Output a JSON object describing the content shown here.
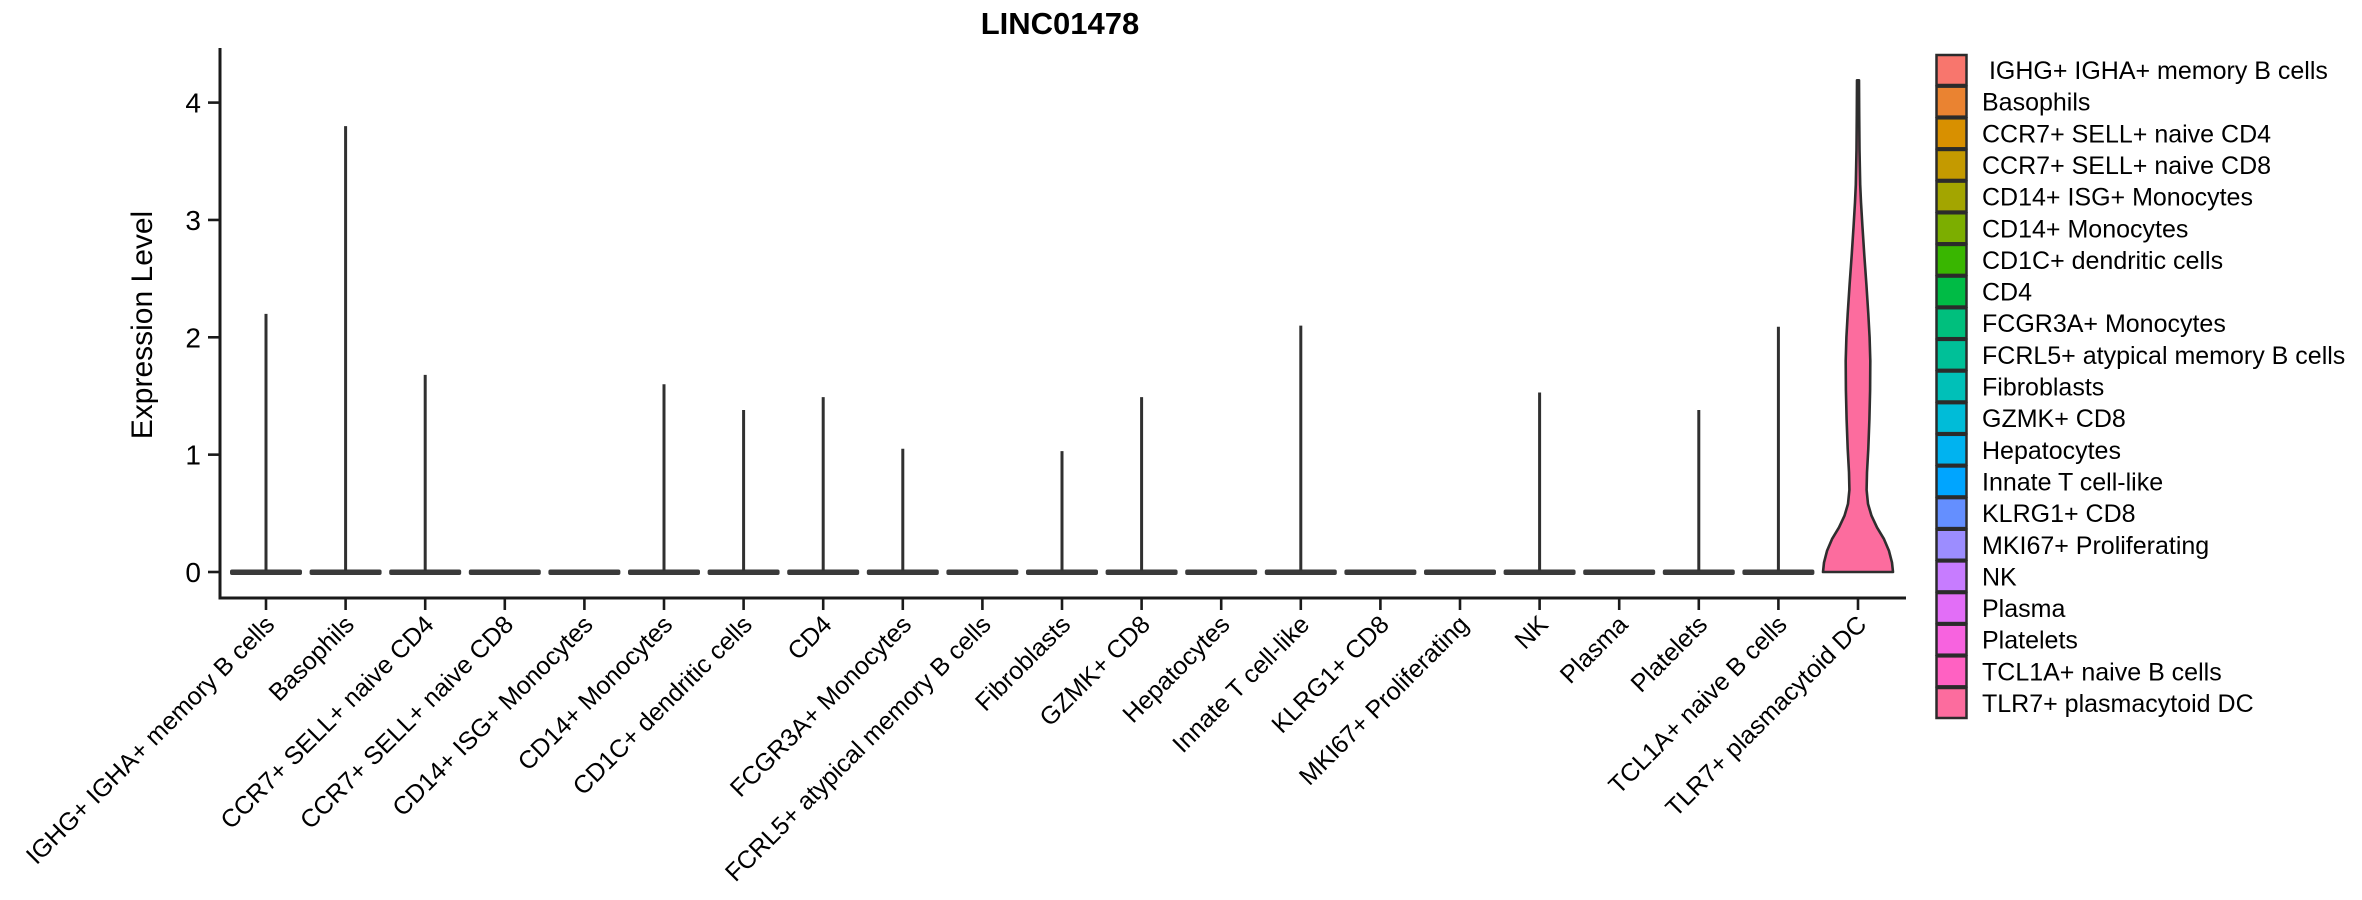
{
  "chart_data": {
    "type": "violin",
    "title": "LINC01478",
    "ylabel": "Expression Level",
    "xlabel": "",
    "y_ticks": [
      0,
      1,
      2,
      3,
      4
    ],
    "ylim": [
      0,
      4.4
    ],
    "grid": false,
    "legend_position": "right",
    "violin_category_index": 20,
    "categories": [
      {
        "label": "IGHG+ IGHA+ memory B cells",
        "legend_label": " IGHG+ IGHA+ memory B cells",
        "color": "#F8766D",
        "peak": 2.2
      },
      {
        "label": "Basophils",
        "legend_label": "Basophils",
        "color": "#EA8331",
        "peak": 3.8
      },
      {
        "label": "CCR7+ SELL+ naive CD4",
        "legend_label": "CCR7+ SELL+ naive CD4",
        "color": "#D89000",
        "peak": 1.68
      },
      {
        "label": "CCR7+ SELL+ naive CD8",
        "legend_label": "CCR7+ SELL+ naive CD8",
        "color": "#C49A00",
        "peak": 0
      },
      {
        "label": "CD14+ ISG+ Monocytes",
        "legend_label": "CD14+ ISG+ Monocytes",
        "color": "#A3A500",
        "peak": 0
      },
      {
        "label": "CD14+ Monocytes",
        "legend_label": "CD14+ Monocytes",
        "color": "#7CAE00",
        "peak": 1.6
      },
      {
        "label": "CD1C+ dendritic cells",
        "legend_label": "CD1C+ dendritic cells",
        "color": "#39B600",
        "peak": 1.38
      },
      {
        "label": "CD4",
        "legend_label": "CD4",
        "color": "#00BB45",
        "peak": 1.49
      },
      {
        "label": "FCGR3A+ Monocytes",
        "legend_label": "FCGR3A+ Monocytes",
        "color": "#00BF7D",
        "peak": 1.05
      },
      {
        "label": "FCRL5+ atypical memory B cells",
        "legend_label": "FCRL5+ atypical memory B cells",
        "color": "#00C098",
        "peak": 0
      },
      {
        "label": "Fibroblasts",
        "legend_label": "Fibroblasts",
        "color": "#00C0B8",
        "peak": 1.03
      },
      {
        "label": "GZMK+ CD8",
        "legend_label": "GZMK+ CD8",
        "color": "#00BCD8",
        "peak": 1.49
      },
      {
        "label": "Hepatocytes",
        "legend_label": "Hepatocytes",
        "color": "#00B3F0",
        "peak": 0
      },
      {
        "label": "Innate T cell-like",
        "legend_label": "Innate T cell-like",
        "color": "#00A5FF",
        "peak": 2.1
      },
      {
        "label": "KLRG1+ CD8",
        "legend_label": "KLRG1+ CD8",
        "color": "#648FFF",
        "peak": 0
      },
      {
        "label": "MKI67+ Proliferating",
        "legend_label": "MKI67+ Proliferating",
        "color": "#9C8DFF",
        "peak": 0
      },
      {
        "label": "NK",
        "legend_label": "NK",
        "color": "#C77CFF",
        "peak": 1.53
      },
      {
        "label": "Plasma",
        "legend_label": "Plasma",
        "color": "#E26EF7",
        "peak": 0
      },
      {
        "label": "Platelets",
        "legend_label": "Platelets",
        "color": "#F763DF",
        "peak": 1.38
      },
      {
        "label": "TCL1A+ naive B cells",
        "legend_label": "TCL1A+ naive B cells",
        "color": "#FF61C2",
        "peak": 2.09
      },
      {
        "label": "TLR7+ plasmacytoid DC",
        "legend_label": "TLR7+ plasmacytoid DC",
        "color": "#FC6C9E",
        "peak": 4.19
      }
    ],
    "violin_profile": [
      [
        0.0,
        35.0
      ],
      [
        0.08,
        34.0
      ],
      [
        0.18,
        31.0
      ],
      [
        0.28,
        26.0
      ],
      [
        0.38,
        19.0
      ],
      [
        0.48,
        13.5
      ],
      [
        0.58,
        10.0
      ],
      [
        0.7,
        8.6
      ],
      [
        0.85,
        9.0
      ],
      [
        1.05,
        10.3
      ],
      [
        1.3,
        11.4
      ],
      [
        1.55,
        12.1
      ],
      [
        1.8,
        12.3
      ],
      [
        2.0,
        11.6
      ],
      [
        2.2,
        10.3
      ],
      [
        2.45,
        8.4
      ],
      [
        2.7,
        6.3
      ],
      [
        2.95,
        4.4
      ],
      [
        3.15,
        3.0
      ],
      [
        3.3,
        2.2
      ],
      [
        3.6,
        1.5
      ],
      [
        3.9,
        1.2
      ],
      [
        4.19,
        1.0
      ]
    ]
  }
}
